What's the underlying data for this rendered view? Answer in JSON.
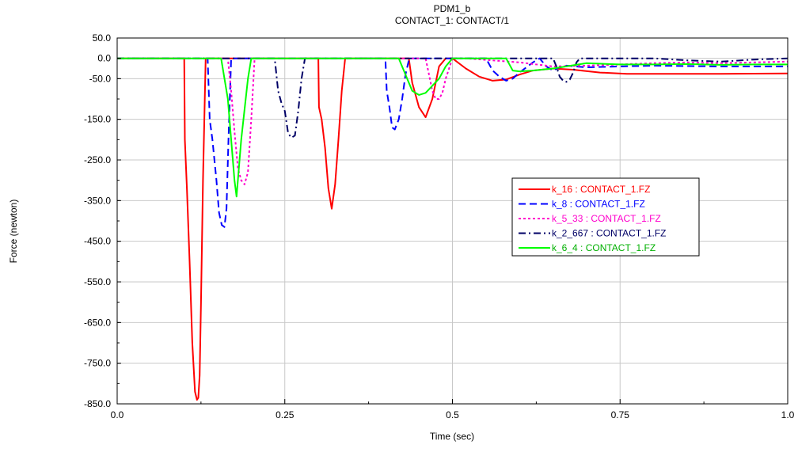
{
  "chart_data": {
    "type": "line",
    "title": "PDM1_b",
    "subtitle": "CONTACT_1: CONTACT/1",
    "xlabel": "Time (sec)",
    "ylabel": "Force (newton)",
    "xlim": [
      0.0,
      1.0
    ],
    "ylim": [
      -850.0,
      50.0
    ],
    "x_ticks": [
      0.0,
      0.25,
      0.5,
      0.75,
      1.0
    ],
    "x_tick_labels": [
      "0.0",
      "0.25",
      "0.5",
      "0.75",
      "1.0"
    ],
    "y_ticks": [
      50,
      0,
      -50,
      -150,
      -250,
      -350,
      -450,
      -550,
      -650,
      -750,
      -850
    ],
    "y_tick_labels": [
      "50.0",
      "0.0",
      "-50.0",
      "-150.0",
      "-250.0",
      "-350.0",
      "-450.0",
      "-550.0",
      "-650.0",
      "-750.0",
      "-850.0"
    ],
    "grid": true,
    "legend_position": "center-right",
    "series": [
      {
        "name": "k_16 : CONTACT_1.FZ",
        "color": "#ff0000",
        "dash": "solid",
        "x": [
          0,
          0.1,
          0.101,
          0.104,
          0.108,
          0.112,
          0.116,
          0.119,
          0.121,
          0.123,
          0.125,
          0.128,
          0.132,
          0.3,
          0.301,
          0.305,
          0.31,
          0.315,
          0.32,
          0.325,
          0.33,
          0.335,
          0.34,
          0.435,
          0.44,
          0.45,
          0.46,
          0.47,
          0.48,
          0.49,
          0.5,
          0.52,
          0.54,
          0.56,
          0.58,
          0.6,
          0.62,
          0.65,
          0.68,
          0.72,
          0.76,
          0.8,
          0.9,
          1.0
        ],
        "y": [
          0,
          0,
          -200,
          -320,
          -500,
          -700,
          -820,
          -840,
          -835,
          -780,
          -600,
          -300,
          0,
          0,
          -120,
          -150,
          -220,
          -320,
          -370,
          -310,
          -200,
          -80,
          0,
          0,
          -60,
          -120,
          -145,
          -100,
          -20,
          0,
          0,
          -25,
          -45,
          -55,
          -52,
          -40,
          -30,
          -25,
          -28,
          -35,
          -38,
          -38,
          -38,
          -37
        ]
      },
      {
        "name": "k_8 : CONTACT_1.FZ",
        "color": "#0000ff",
        "dash": "dashed",
        "x": [
          0,
          0.135,
          0.138,
          0.142,
          0.148,
          0.152,
          0.156,
          0.16,
          0.163,
          0.166,
          0.17,
          0.4,
          0.402,
          0.406,
          0.41,
          0.414,
          0.42,
          0.425,
          0.43,
          0.435,
          0.44,
          0.55,
          0.56,
          0.57,
          0.58,
          0.59,
          0.6,
          0.62,
          0.63,
          0.64,
          0.65,
          0.66,
          0.67,
          0.7,
          0.75,
          0.8,
          0.9,
          1.0
        ],
        "y": [
          0,
          0,
          -150,
          -200,
          -300,
          -380,
          -410,
          -415,
          -370,
          -200,
          0,
          0,
          -80,
          -120,
          -170,
          -175,
          -150,
          -100,
          -40,
          -5,
          0,
          0,
          -30,
          -45,
          -55,
          -50,
          -35,
          -10,
          0,
          -20,
          -30,
          -22,
          -18,
          -22,
          -20,
          -18,
          -20,
          -20
        ]
      },
      {
        "name": "k_5_33 : CONTACT_1.FZ",
        "color": "#ff00cc",
        "dash": "dotted",
        "x": [
          0,
          0.165,
          0.17,
          0.175,
          0.18,
          0.185,
          0.19,
          0.195,
          0.2,
          0.205,
          0.46,
          0.465,
          0.47,
          0.475,
          0.48,
          0.485,
          0.49,
          0.5,
          0.52,
          0.6,
          0.65,
          0.7,
          0.75,
          0.8,
          0.85,
          0.9,
          0.95,
          1.0
        ],
        "y": [
          0,
          0,
          -80,
          -180,
          -270,
          -300,
          -310,
          -280,
          -150,
          0,
          0,
          -40,
          -80,
          -100,
          -100,
          -85,
          -50,
          0,
          0,
          -10,
          -20,
          -18,
          -15,
          -12,
          -10,
          -12,
          -10,
          -8
        ]
      },
      {
        "name": "k_2_667 : CONTACT_1.FZ",
        "color": "#000066",
        "dash": "dashdot",
        "x": [
          0,
          0.235,
          0.24,
          0.245,
          0.25,
          0.255,
          0.26,
          0.265,
          0.27,
          0.275,
          0.28,
          0.65,
          0.655,
          0.66,
          0.665,
          0.67,
          0.675,
          0.68,
          0.685,
          0.69,
          0.7,
          0.75,
          0.8,
          0.85,
          0.9,
          0.95,
          1.0
        ],
        "y": [
          0,
          0,
          -80,
          -110,
          -130,
          -185,
          -195,
          -190,
          -130,
          -50,
          0,
          0,
          -20,
          -45,
          -55,
          -58,
          -52,
          -35,
          -10,
          0,
          0,
          0,
          0,
          -5,
          -8,
          -3,
          0
        ]
      },
      {
        "name": "k_6_4 : CONTACT_1.FZ",
        "color": "#00ff00",
        "dash": "solid",
        "x": [
          0,
          0.155,
          0.165,
          0.17,
          0.175,
          0.178,
          0.185,
          0.195,
          0.2,
          0.42,
          0.43,
          0.44,
          0.45,
          0.46,
          0.48,
          0.49,
          0.5,
          0.52,
          0.58,
          0.59,
          0.6,
          0.62,
          0.65,
          0.7,
          0.75,
          0.8,
          0.85,
          0.9,
          0.95,
          1.0
        ],
        "y": [
          0,
          0,
          -100,
          -200,
          -300,
          -340,
          -200,
          -50,
          0,
          0,
          -40,
          -80,
          -90,
          -85,
          -50,
          -20,
          0,
          0,
          0,
          -30,
          -32,
          -30,
          -25,
          -12,
          -15,
          -15,
          -14,
          -16,
          -15,
          -15
        ]
      }
    ]
  }
}
